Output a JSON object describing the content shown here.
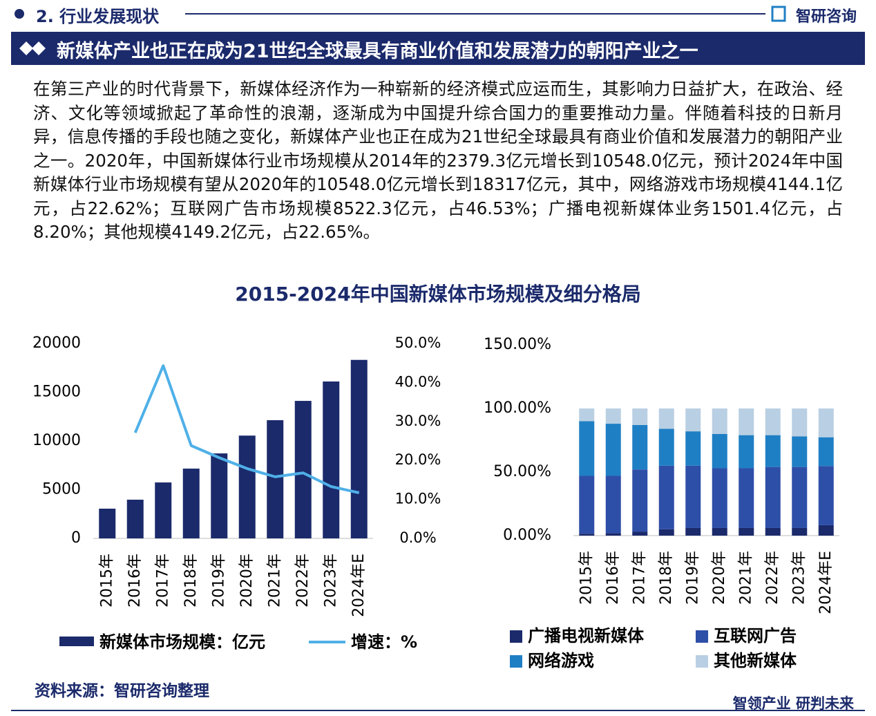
{
  "header": {
    "section": "2. 行业发展现状",
    "logo": "智研咨询"
  },
  "banner": {
    "title": "新媒体产业也正在成为21世纪全球最具有商业价值和发展潜力的朝阳产业之一"
  },
  "paragraph": "在第三产业的时代背景下，新媒体经济作为一种崭新的经济模式应运而生，其影响力日益扩大，在政治、经济、文化等领域掀起了革命性的浪潮，逐渐成为中国提升综合国力的重要推动力量。伴随着科技的日新月异，信息传播的手段也随之变化，新媒体产业也正在成为21世纪全球最具有商业价值和发展潜力的朝阳产业之一。2020年，中国新媒体行业市场规模从2014年的2379.3亿元增长到10548.0亿元，预计2024年中国新媒体行业市场规模有望从2020年的10548.0亿元增长到18317亿元，其中，网络游戏市场规模4144.1亿元，占22.62%；互联网广告市场规模8522.3亿元，占46.53%；广播电视新媒体业务1501.4亿元，占8.20%；其他规模4149.2亿元，占22.65%。",
  "figure_title": "2015-2024年中国新媒体市场规模及细分格局",
  "chart_data": [
    {
      "type": "bar",
      "categories": [
        "2015年",
        "2016年",
        "2017年",
        "2018年",
        "2019年",
        "2020年",
        "2021年",
        "2022年",
        "2023年",
        "2024年E"
      ],
      "series": [
        {
          "name": "新媒体市场规模：亿元",
          "color": "#1b2a6b",
          "values": [
            3050,
            3970,
            5740,
            7160,
            8720,
            10548,
            12130,
            14110,
            16100,
            18317
          ]
        },
        {
          "name": "增速：%",
          "color": "#4fb0e8",
          "type": "line",
          "axis": "y2",
          "values": [
            null,
            27.1,
            44.3,
            23.8,
            20.7,
            17.9,
            15.8,
            16.8,
            13.3,
            11.7
          ]
        }
      ],
      "ylim": [
        0,
        20000
      ],
      "yticks": [
        0,
        5000,
        10000,
        15000,
        20000
      ],
      "y2lim": [
        0,
        50
      ],
      "y2ticks": [
        {
          "value": 0,
          "label": "0.0%"
        },
        {
          "value": 10,
          "label": "10.0%"
        },
        {
          "value": 20,
          "label": "20.0%"
        },
        {
          "value": 30,
          "label": "30.0%"
        },
        {
          "value": 40,
          "label": "40.0%"
        },
        {
          "value": 50,
          "label": "50.0%"
        }
      ]
    },
    {
      "type": "bar",
      "stacked": true,
      "categories": [
        "2015年",
        "2016年",
        "2017年",
        "2018年",
        "2019年",
        "2020年",
        "2021年",
        "2022年",
        "2023年",
        "2024年E"
      ],
      "series": [
        {
          "name": "广播电视新媒体",
          "color": "#1b2a6b",
          "values": [
            1.5,
            2,
            3,
            5,
            6,
            6,
            6,
            6,
            6,
            8.2
          ]
        },
        {
          "name": "互联网广告",
          "color": "#2e4fa8",
          "values": [
            45.5,
            45,
            49,
            50,
            49,
            47,
            47,
            48,
            48,
            46.53
          ]
        },
        {
          "name": "网络游戏",
          "color": "#1f7fc4",
          "values": [
            43,
            41,
            35,
            29,
            27,
            27,
            26,
            25,
            24,
            22.62
          ]
        },
        {
          "name": "其他新媒体",
          "color": "#b9cfe3",
          "values": [
            10,
            12,
            13,
            16,
            18,
            20,
            21,
            21,
            22,
            22.65
          ]
        }
      ],
      "ylim": [
        0,
        150
      ],
      "yticks": [
        {
          "value": 0,
          "label": "0.00%"
        },
        {
          "value": 50,
          "label": "50.00%"
        },
        {
          "value": 100,
          "label": "100.00%"
        },
        {
          "value": 150,
          "label": "150.00%"
        }
      ]
    }
  ],
  "footer": {
    "source": "资料来源：智研咨询整理",
    "slogan": "智领产业 研判未来"
  }
}
